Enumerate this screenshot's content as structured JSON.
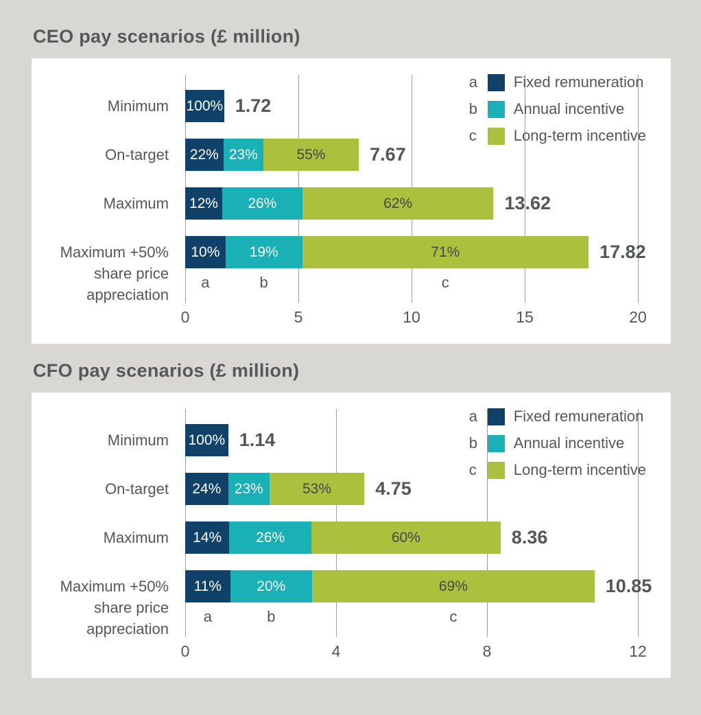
{
  "colors": {
    "page_background": "#d8d7d4",
    "panel_background": "#ffffff",
    "title_text": "#57585c",
    "axis_text": "#55565a",
    "grid_line": "#9b9b9b",
    "navy": "#104269",
    "teal": "#19b0b6",
    "green": "#abc13e",
    "label_on_dark": "#ffffff",
    "label_on_green": "#45464a"
  },
  "chart_data": [
    {
      "title": "CEO pay scenarios (£ million)",
      "type": "bar",
      "variant": "horizontal-stacked",
      "unit": "£ million",
      "xlabel": "",
      "ylabel": "",
      "grid": "vertical",
      "legend_position": "top-right",
      "categories": [
        "Minimum",
        "On-target",
        "Maximum",
        "Maximum +50% share price appreciation"
      ],
      "category_lines": [
        [
          "Minimum"
        ],
        [
          "On-target"
        ],
        [
          "Maximum"
        ],
        [
          "Maximum +50%",
          "share price",
          "appreciation"
        ]
      ],
      "series": [
        {
          "key": "a",
          "name": "Fixed remuneration",
          "color": "navy",
          "label_color": "label_on_dark",
          "percents": [
            100,
            22,
            12,
            10
          ]
        },
        {
          "key": "b",
          "name": "Annual incentive",
          "color": "teal",
          "label_color": "label_on_dark",
          "percents": [
            0,
            23,
            26,
            19
          ]
        },
        {
          "key": "c",
          "name": "Long-term incentive",
          "color": "green",
          "label_color": "label_on_green",
          "percents": [
            0,
            55,
            62,
            71
          ]
        }
      ],
      "segment_labels": [
        [
          "100%",
          "",
          ""
        ],
        [
          "22%",
          "23%",
          "55%"
        ],
        [
          "12%",
          "26%",
          "62%"
        ],
        [
          "10%",
          "19%",
          "71%"
        ]
      ],
      "totals": [
        1.72,
        7.67,
        13.62,
        17.82
      ],
      "total_labels": [
        "1.72",
        "7.67",
        "13.62",
        "17.82"
      ],
      "xlim": [
        0,
        20
      ],
      "ticks": [
        0,
        5,
        10,
        15,
        20
      ],
      "legend": [
        {
          "key": "a",
          "label": "Fixed remuneration"
        },
        {
          "key": "b",
          "label": "Annual incentive"
        },
        {
          "key": "c",
          "label": "Long-term incentive"
        }
      ]
    },
    {
      "title": "CFO pay scenarios (£ million)",
      "type": "bar",
      "variant": "horizontal-stacked",
      "unit": "£ million",
      "xlabel": "",
      "ylabel": "",
      "grid": "vertical",
      "legend_position": "top-right",
      "categories": [
        "Minimum",
        "On-target",
        "Maximum",
        "Maximum +50% share price appreciation"
      ],
      "category_lines": [
        [
          "Minimum"
        ],
        [
          "On-target"
        ],
        [
          "Maximum"
        ],
        [
          "Maximum +50%",
          "share price",
          "appreciation"
        ]
      ],
      "series": [
        {
          "key": "a",
          "name": "Fixed remuneration",
          "color": "navy",
          "label_color": "label_on_dark",
          "percents": [
            100,
            24,
            14,
            11
          ]
        },
        {
          "key": "b",
          "name": "Annual incentive",
          "color": "teal",
          "label_color": "label_on_dark",
          "percents": [
            0,
            23,
            26,
            20
          ]
        },
        {
          "key": "c",
          "name": "Long-term incentive",
          "color": "green",
          "label_color": "label_on_green",
          "percents": [
            0,
            53,
            60,
            69
          ]
        }
      ],
      "segment_labels": [
        [
          "100%",
          "",
          ""
        ],
        [
          "24%",
          "23%",
          "53%"
        ],
        [
          "14%",
          "26%",
          "60%"
        ],
        [
          "11%",
          "20%",
          "69%"
        ]
      ],
      "totals": [
        1.14,
        4.75,
        8.36,
        10.85
      ],
      "total_labels": [
        "1.14",
        "4.75",
        "8.36",
        "10.85"
      ],
      "xlim": [
        0,
        12
      ],
      "ticks": [
        0,
        4,
        8,
        12
      ],
      "legend": [
        {
          "key": "a",
          "label": "Fixed remuneration"
        },
        {
          "key": "b",
          "label": "Annual incentive"
        },
        {
          "key": "c",
          "label": "Long-term incentive"
        }
      ]
    }
  ]
}
